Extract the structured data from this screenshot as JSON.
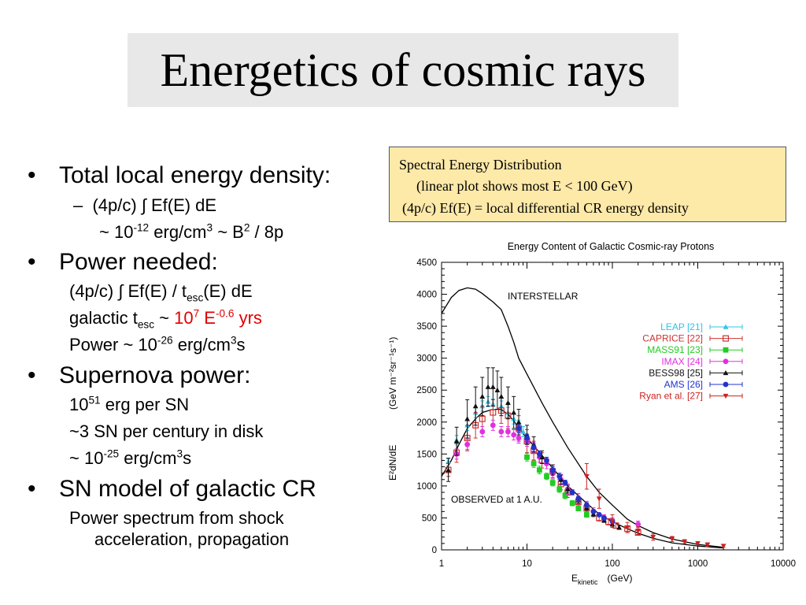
{
  "slide": {
    "title": "Energetics of cosmic rays",
    "bullets": {
      "b1": "Total local energy density:",
      "b1_sub1": "(4p/c) ∫ Ef(E) dE",
      "b1_sub2_a": "~ 10",
      "b1_sub2_exp": "-12",
      "b1_sub2_b": " erg/cm",
      "b1_sub2_exp2": "3",
      "b1_sub2_c": " ~ B",
      "b1_sub2_exp3": "2",
      "b1_sub2_d": " / 8p",
      "b2": "Power needed:",
      "b2_sub1_a": "(4p/c) ∫ Ef(E) / t",
      "b2_sub1_sub": "esc",
      "b2_sub1_b": "(E) dE",
      "b2_sub2_a": "galactic t",
      "b2_sub2_sub": "esc",
      "b2_sub2_b": " ~ ",
      "b2_sub2_red_a": "10",
      "b2_sub2_red_exp": "7",
      "b2_sub2_red_b": " E",
      "b2_sub2_red_exp2": "-0.6",
      "b2_sub2_red_c": " yrs",
      "b2_sub3_a": "Power ~ 10",
      "b2_sub3_exp": "-26",
      "b2_sub3_b": " erg/cm",
      "b2_sub3_exp2": "3",
      "b2_sub3_c": "s",
      "b3": "Supernova power:",
      "b3_sub1_a": "10",
      "b3_sub1_exp": "51",
      "b3_sub1_b": " erg per SN",
      "b3_sub2": "~3 SN per century in disk",
      "b3_sub3_a": "~ 10",
      "b3_sub3_exp": "-25",
      "b3_sub3_b": " erg/cm",
      "b3_sub3_exp2": "3",
      "b3_sub3_c": "s",
      "b4": "SN model of galactic CR",
      "b4_sub1": "Power spectrum from shock",
      "b4_sub2": "acceleration, propagation"
    },
    "bullet_glyph": "•",
    "note": {
      "line1": "Spectral Energy Distribution",
      "line2": "(linear plot shows most E < 100 GeV)",
      "line3": "(4p/c) Ef(E) = local differential CR energy density"
    },
    "colors": {
      "highlight": "#e00000",
      "note_bg": "#fde9a8",
      "title_bg": "#e8e8e8"
    }
  },
  "chart_data": {
    "type": "scatter",
    "title": "Energy Content of Galactic Cosmic-ray Protons",
    "xlabel": "E_kinetic (GeV)",
    "xlabel_main": "E",
    "xlabel_sub": "kinetic",
    "xlabel_unit": "(GeV)",
    "ylabel_main": "E²dN/dE",
    "ylabel_unit": "(GeV m⁻²sr⁻¹s⁻¹)",
    "xscale": "log",
    "xlim": [
      1,
      10000
    ],
    "ylim": [
      0,
      4500
    ],
    "xticks": [
      "1",
      "10",
      "100",
      "1000",
      "10000"
    ],
    "yticks": [
      "0",
      "500",
      "1000",
      "1500",
      "2000",
      "2500",
      "3000",
      "3500",
      "4000",
      "4500"
    ],
    "annotations": [
      "INTERSTELLAR",
      "OBSERVED at 1 A.U."
    ],
    "legend_position": "right",
    "curves": [
      {
        "name": "interstellar",
        "x": [
          1,
          1.3,
          1.6,
          2,
          2.5,
          3,
          4,
          5,
          6,
          7,
          8,
          10,
          15,
          20,
          30,
          50,
          70,
          100,
          150,
          200,
          300,
          500,
          1000,
          2000
        ],
        "y": [
          3700,
          3950,
          4060,
          4100,
          4080,
          4010,
          3880,
          3760,
          3500,
          3250,
          3000,
          2750,
          2300,
          2000,
          1600,
          1150,
          900,
          700,
          480,
          380,
          270,
          170,
          85,
          40
        ]
      },
      {
        "name": "observed",
        "x": [
          1,
          1.3,
          1.6,
          2,
          2.5,
          3,
          4,
          5,
          6,
          7,
          8,
          10,
          15,
          20,
          30,
          50,
          70,
          100,
          150,
          200,
          300,
          500,
          1000,
          2000
        ],
        "y": [
          1150,
          1400,
          1650,
          1900,
          2050,
          2150,
          2200,
          2200,
          2120,
          2020,
          1900,
          1750,
          1480,
          1280,
          1000,
          730,
          560,
          440,
          330,
          260,
          180,
          110,
          60,
          30
        ]
      }
    ],
    "series": [
      {
        "name": "LEAP [21]",
        "color": "#2ec4e8",
        "marker": "triangle-up",
        "x": [
          1.2,
          1.5,
          2,
          2.5,
          3,
          3.5,
          4,
          5,
          6,
          7,
          8,
          9
        ],
        "y": [
          1380,
          1720,
          1950,
          2150,
          2250,
          2320,
          2280,
          2250,
          2150,
          2050,
          1950,
          1850
        ],
        "err": [
          60,
          70,
          80,
          80,
          80,
          80,
          80,
          80,
          80,
          80,
          80,
          80
        ]
      },
      {
        "name": "CAPRICE [22]",
        "color": "#cc3333",
        "marker": "square-open",
        "x": [
          1.2,
          1.5,
          2,
          2.5,
          3,
          4,
          5,
          6,
          8,
          10,
          12,
          15,
          20,
          25,
          30,
          40,
          50,
          70,
          90,
          110,
          150,
          200
        ],
        "y": [
          1250,
          1520,
          1750,
          1950,
          2050,
          2150,
          2180,
          2100,
          1900,
          1700,
          1550,
          1400,
          1230,
          1030,
          900,
          750,
          650,
          500,
          440,
          380,
          330,
          270
        ],
        "err": [
          100,
          150,
          200,
          200,
          200,
          200,
          200,
          200,
          200,
          180,
          150,
          120,
          100,
          90,
          80,
          70,
          60,
          50,
          50,
          40,
          40,
          30
        ]
      },
      {
        "name": "MASS91 [23]",
        "color": "#22cc22",
        "marker": "square",
        "x": [
          10,
          12,
          14,
          17,
          20,
          24,
          28,
          34,
          40,
          50
        ],
        "y": [
          1450,
          1350,
          1250,
          1150,
          1050,
          950,
          850,
          730,
          650,
          550
        ],
        "err": [
          60,
          60,
          60,
          50,
          50,
          50,
          50,
          40,
          40,
          40
        ]
      },
      {
        "name": "IMAX [24]",
        "color": "#e030e0",
        "marker": "circle",
        "x": [
          1.5,
          2,
          3,
          4,
          5,
          6,
          7,
          8,
          10,
          12,
          14,
          17,
          20,
          25,
          30,
          40,
          50,
          60,
          80,
          100,
          200
        ],
        "y": [
          1500,
          1650,
          1850,
          1950,
          1850,
          1850,
          1800,
          1750,
          1700,
          1600,
          1450,
          1350,
          1200,
          1100,
          950,
          800,
          700,
          600,
          500,
          450,
          400
        ],
        "err": [
          80,
          80,
          80,
          80,
          80,
          80,
          80,
          80,
          80,
          80,
          80,
          80,
          80,
          80,
          80,
          80,
          60,
          60,
          50,
          50,
          50
        ]
      },
      {
        "name": "BESS98 [25]",
        "color": "#111111",
        "marker": "triangle-up",
        "x": [
          1.2,
          1.5,
          2,
          2.5,
          3,
          3.5,
          4,
          4.5,
          5,
          6,
          7,
          8,
          10,
          12,
          15,
          20,
          25,
          30,
          40,
          50,
          60,
          80,
          100,
          120
        ],
        "y": [
          1250,
          1700,
          2050,
          2250,
          2400,
          2550,
          2550,
          2500,
          2400,
          2300,
          2150,
          2000,
          1800,
          1650,
          1450,
          1250,
          1100,
          950,
          780,
          660,
          560,
          460,
          400,
          350
        ],
        "err": [
          180,
          220,
          300,
          300,
          300,
          300,
          300,
          300,
          300,
          250,
          250,
          200,
          150,
          120,
          100,
          80,
          70,
          60,
          50,
          40,
          40,
          30,
          30,
          30
        ]
      },
      {
        "name": "AMS [26]",
        "color": "#2233cc",
        "marker": "circle",
        "x": [
          8,
          10,
          12,
          14,
          17,
          20,
          24,
          28,
          34,
          40,
          50,
          60,
          70,
          80,
          100
        ],
        "y": [
          1900,
          1750,
          1600,
          1500,
          1400,
          1250,
          1150,
          1050,
          900,
          800,
          700,
          600,
          550,
          500,
          450
        ],
        "err": [
          60,
          60,
          60,
          50,
          50,
          50,
          50,
          40,
          40,
          40,
          40,
          30,
          30,
          30,
          30
        ]
      },
      {
        "name": "Ryan et al. [27]",
        "color": "#cc2222",
        "marker": "triangle-down",
        "x": [
          50,
          70,
          100,
          150,
          200,
          300,
          500,
          700,
          1000,
          1300,
          2000
        ],
        "y": [
          1150,
          800,
          450,
          350,
          300,
          200,
          170,
          130,
          100,
          80,
          60
        ],
        "err": [
          200,
          150,
          100,
          80,
          60,
          50,
          40,
          30,
          30,
          30,
          20
        ]
      }
    ]
  }
}
